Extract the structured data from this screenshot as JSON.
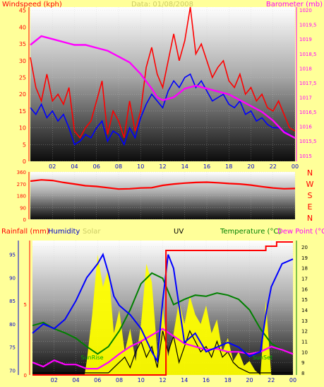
{
  "colors": {
    "background": "#ffff99",
    "wind_gust": "#ff0000",
    "wind_avg": "#0000ff",
    "barometer": "#ff00ff",
    "direction": "#ff0000",
    "rain": "#ff0000",
    "humidity": "#0000ff",
    "solar": "#ffff00",
    "uv": "#000000",
    "temperature": "#008000",
    "dew_point": "#ff00ff",
    "sun_marker": "#00aa00",
    "axis_red": "#ff0000",
    "axis_blue": "#0000cc",
    "axis_magenta": "#ff00ff",
    "axis_green": "#008000",
    "axis_gold": "#cccc66",
    "hour_label": "#0000cc"
  },
  "header_date": "Data:  01/08/2008",
  "hour_labels": [
    "02",
    "04",
    "06",
    "08",
    "10",
    "12",
    "14",
    "16",
    "18",
    "20",
    "22",
    "00"
  ],
  "chart_data": [
    {
      "type": "line",
      "title": "",
      "labels": {
        "left": "Windspeed (kph)",
        "right": "Barometer (mb)"
      },
      "y_left": {
        "range": [
          0,
          46
        ],
        "ticks": [
          "0",
          "5",
          "10",
          "15",
          "20",
          "25",
          "30",
          "35",
          "40",
          "45"
        ]
      },
      "y_right": {
        "range": [
          1014.8,
          1020.1
        ],
        "ticks": [
          "1015",
          "1015,5",
          "1016",
          "1016,5",
          "1017",
          "1017,5",
          "1018",
          "1018,5",
          "1019",
          "1019,5",
          "1020"
        ]
      },
      "x_range": [
        0,
        24
      ],
      "series": [
        {
          "axis": "left",
          "x": [
            0,
            0.5,
            1,
            1.5,
            2,
            2.5,
            3,
            3.5,
            4,
            4.5,
            5,
            5.5,
            6,
            6.5,
            7,
            7.5,
            8,
            8.5,
            9,
            9.5,
            10,
            10.5,
            11,
            11.5,
            12,
            12.5,
            13,
            13.5,
            14,
            14.5,
            15,
            15.5,
            16,
            16.5,
            17,
            17.5,
            18,
            18.5,
            19,
            19.5,
            20,
            20.5,
            21,
            21.5,
            22,
            22.5,
            23,
            23.5,
            24
          ],
          "y": [
            31,
            22,
            18,
            26,
            18,
            20,
            17,
            22,
            9,
            7,
            10,
            12,
            18,
            24,
            8,
            15,
            12,
            7,
            18,
            9,
            15,
            28,
            34,
            26,
            22,
            30,
            38,
            30,
            36,
            46,
            32,
            35,
            30,
            25,
            28,
            30,
            24,
            22,
            26,
            20,
            22,
            18,
            20,
            16,
            15,
            18,
            14,
            10,
            9
          ]
        },
        {
          "axis": "left",
          "x": [
            0,
            0.5,
            1,
            1.5,
            2,
            2.5,
            3,
            3.5,
            4,
            4.5,
            5,
            5.5,
            6,
            6.5,
            7,
            7.5,
            8,
            8.5,
            9,
            9.5,
            10,
            10.5,
            11,
            11.5,
            12,
            12.5,
            13,
            13.5,
            14,
            14.5,
            15,
            15.5,
            16,
            16.5,
            17,
            17.5,
            18,
            18.5,
            19,
            19.5,
            20,
            20.5,
            21,
            21.5,
            22,
            22.5,
            23,
            23.5,
            24
          ],
          "y": [
            16,
            14,
            17,
            13,
            15,
            12,
            14,
            10,
            5,
            6,
            8,
            7,
            10,
            12,
            6,
            9,
            8,
            5,
            10,
            7,
            13,
            17,
            20,
            18,
            16,
            21,
            24,
            22,
            25,
            26,
            22,
            24,
            21,
            18,
            19,
            20,
            17,
            16,
            18,
            14,
            15,
            12,
            13,
            11,
            10,
            10,
            9,
            8,
            7
          ]
        },
        {
          "axis": "right",
          "x": [
            0,
            1,
            2,
            3,
            4,
            5,
            6,
            7,
            8,
            9,
            10,
            11,
            11.5,
            12,
            13,
            14,
            15,
            16,
            17,
            18,
            19,
            20,
            21,
            22,
            23,
            24
          ],
          "y": [
            1018.8,
            1019.1,
            1019.0,
            1018.9,
            1018.8,
            1018.8,
            1018.7,
            1018.6,
            1018.4,
            1018.2,
            1017.8,
            1017.3,
            1017.0,
            1016.9,
            1017.0,
            1017.3,
            1017.4,
            1017.3,
            1017.2,
            1017.1,
            1016.9,
            1016.7,
            1016.5,
            1016.2,
            1015.8,
            1015.6
          ]
        }
      ]
    },
    {
      "type": "line",
      "title": "",
      "labels": {
        "left": "",
        "right": ""
      },
      "y_left": {
        "range": [
          0,
          360
        ],
        "ticks": [
          "0",
          "90",
          "180",
          "270",
          "360"
        ]
      },
      "direction_labels": [
        "N",
        "W",
        "S",
        "E",
        "N"
      ],
      "x_range": [
        0,
        24
      ],
      "series": [
        {
          "x": [
            0,
            1,
            2,
            3,
            4,
            5,
            6,
            7,
            8,
            9,
            10,
            11,
            12,
            13,
            14,
            15,
            16,
            17,
            18,
            19,
            20,
            21,
            22,
            23,
            24
          ],
          "y": [
            290,
            300,
            295,
            280,
            268,
            255,
            250,
            240,
            230,
            232,
            238,
            240,
            258,
            268,
            275,
            280,
            282,
            278,
            272,
            268,
            260,
            248,
            238,
            232,
            234
          ]
        }
      ]
    },
    {
      "type": "line",
      "title": "",
      "labels": {
        "rainfall": "Rainfall (mm)",
        "humidity": "Humidity",
        "solar": "Solar",
        "uv": "UV",
        "temperature": "Temperature (°C)",
        "dew_point": "Dew Point (°C)"
      },
      "annotations": [
        "SunRise",
        "SunSet"
      ],
      "sunrise_hour": 5.5,
      "sunset_hour": 21.2,
      "y_left": {
        "range": [
          69,
          98
        ],
        "ticks": [
          "70",
          "75",
          "80",
          "85",
          "90",
          "95"
        ]
      },
      "y_rain": {
        "range": [
          0,
          9.5
        ],
        "ticks": [
          "0",
          "5"
        ]
      },
      "y_right": {
        "range": [
          7.8,
          20.6
        ],
        "ticks": [
          "8",
          "9",
          "10",
          "11",
          "12",
          "13",
          "14",
          "15",
          "16",
          "17",
          "18",
          "19",
          "20"
        ]
      },
      "x_range": [
        0,
        24
      ],
      "series": [
        {
          "name": "Rainfall (mm)",
          "axis": "rain",
          "x": [
            0,
            12.3,
            12.3,
            21.5,
            21.5,
            22.5,
            22.5,
            24
          ],
          "y": [
            0,
            0,
            8.8,
            8.8,
            9.1,
            9.1,
            9.4,
            9.4
          ]
        },
        {
          "name": "Humidity",
          "axis": "left",
          "x": [
            0,
            1,
            2,
            3,
            4,
            5,
            6,
            6.5,
            7,
            7.5,
            8,
            9,
            10,
            11,
            11.5,
            12,
            12.5,
            13,
            14,
            15,
            16,
            17,
            18,
            19,
            20,
            21,
            21.5,
            22,
            23,
            24
          ],
          "y": [
            78,
            80,
            79,
            81,
            85,
            90,
            93,
            95,
            91,
            86,
            84,
            82,
            79,
            74,
            72,
            85,
            95,
            92,
            76,
            78,
            74,
            75,
            76,
            75,
            73,
            74,
            82,
            88,
            93,
            94
          ]
        },
        {
          "name": "Solar",
          "axis": "left",
          "x": [
            0,
            4.8,
            5,
            5.5,
            6,
            6.5,
            7,
            7.5,
            8,
            8.5,
            9,
            9.5,
            10,
            10.5,
            11,
            11.5,
            12,
            12.5,
            13,
            13.5,
            14,
            14.5,
            15,
            15.5,
            16,
            16.5,
            17,
            17.5,
            18,
            18.5,
            19,
            19.5,
            20,
            20.5,
            21,
            21.5,
            22,
            24
          ],
          "y": [
            69,
            69,
            72,
            82,
            95,
            88,
            92,
            78,
            83,
            74,
            79,
            72,
            80,
            93,
            89,
            74,
            84,
            73,
            78,
            85,
            80,
            86,
            82,
            80,
            84,
            78,
            81,
            74,
            77,
            72,
            74,
            71,
            72,
            70,
            69,
            85,
            69,
            69
          ]
        },
        {
          "name": "UV",
          "axis": "right",
          "x": [
            0,
            6,
            7,
            7.5,
            8,
            8.5,
            9,
            9.5,
            10,
            10.5,
            11,
            11.5,
            12,
            12.5,
            13,
            13.5,
            14,
            14.5,
            15,
            15.5,
            16,
            16.5,
            17,
            17.5,
            18,
            18.5,
            19,
            20,
            21,
            22,
            24
          ],
          "y": [
            8,
            8,
            8,
            8.5,
            9,
            9.5,
            8.5,
            10,
            11,
            9.5,
            10.5,
            8.5,
            12,
            10,
            11.5,
            9,
            10.5,
            12,
            11,
            10,
            10.5,
            9.5,
            11,
            9.5,
            10,
            9,
            8.5,
            8,
            8,
            8,
            8
          ]
        },
        {
          "name": "Temperature (°C)",
          "axis": "right",
          "x": [
            0,
            1,
            2,
            3,
            4,
            5,
            6,
            7,
            8,
            9,
            10,
            11,
            12,
            13,
            14,
            15,
            16,
            17,
            18,
            19,
            20,
            21,
            22,
            23,
            24
          ],
          "y": [
            12.5,
            12.8,
            12.2,
            11.8,
            11.3,
            10.5,
            9.8,
            10.5,
            12.0,
            14.0,
            16.5,
            17.5,
            17.0,
            14.5,
            15.0,
            15.4,
            15.3,
            15.6,
            15.4,
            15.0,
            14.0,
            12.2,
            10.8,
            10.2,
            9.8
          ]
        },
        {
          "name": "Dew Point (°C)",
          "axis": "right",
          "x": [
            0,
            1,
            2,
            3,
            4,
            5,
            6,
            7,
            8,
            9,
            10,
            11,
            12,
            13,
            14,
            15,
            16,
            17,
            18,
            19,
            20,
            21,
            22,
            23,
            24
          ],
          "y": [
            9.0,
            8.6,
            9.2,
            8.8,
            8.8,
            8.4,
            8.4,
            9.0,
            9.8,
            10.5,
            11.0,
            11.6,
            12.2,
            11.5,
            10.8,
            10.5,
            10.2,
            10.3,
            10.0,
            10.0,
            9.8,
            10.0,
            10.5,
            10.2,
            9.8
          ]
        }
      ]
    }
  ]
}
